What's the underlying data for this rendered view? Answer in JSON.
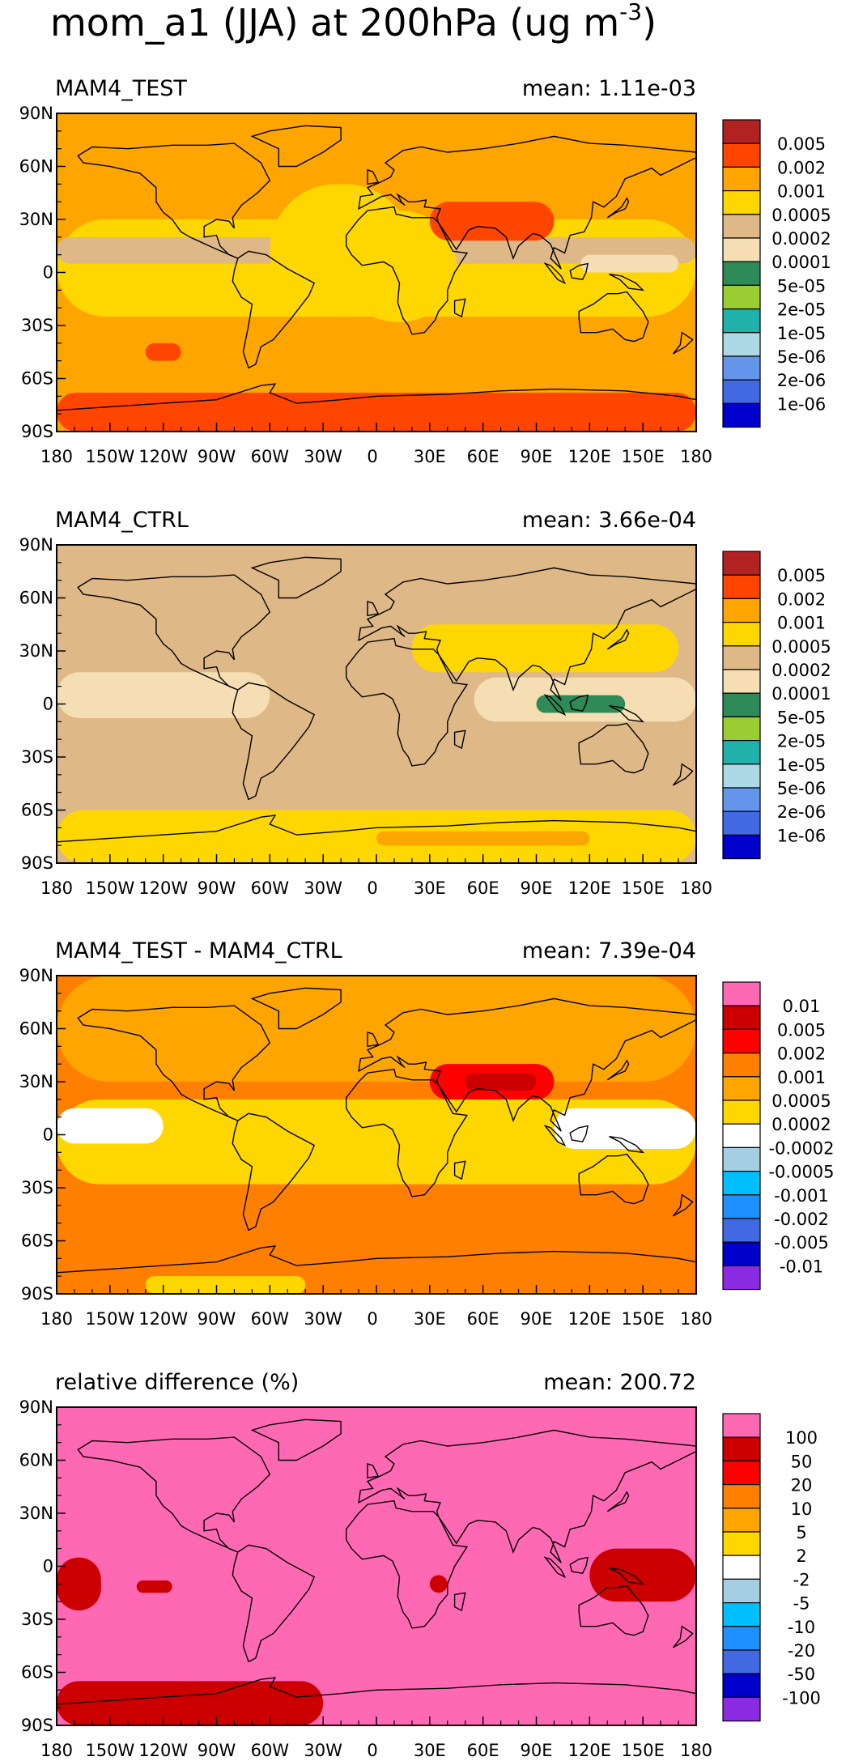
{
  "title": {
    "main": "mom_a1 (JJA) at 200hPa (ug m",
    "exponent": "-3",
    "close": ")"
  },
  "axes": {
    "x_ticks": [
      "180",
      "150W",
      "120W",
      "90W",
      "60W",
      "30W",
      "0",
      "30E",
      "60E",
      "90E",
      "120E",
      "150E",
      "180"
    ],
    "y_ticks": [
      "90N",
      "60N",
      "30N",
      "0",
      "30S",
      "60S",
      "90S"
    ]
  },
  "chart_data": [
    {
      "type": "heatmap",
      "subtitle": "MAM4_TEST",
      "mean_label": "mean:",
      "mean": "1.11e-03",
      "background": "#FFA500",
      "legend": {
        "labels": [
          "0.005",
          "0.002",
          "0.001",
          "0.0005",
          "0.0002",
          "0.0001",
          "5e-05",
          "2e-05",
          "1e-05",
          "5e-06",
          "2e-06",
          "1e-06"
        ],
        "colors": [
          "#B22222",
          "#FF4500",
          "#FFA500",
          "#FFD700",
          "#DEB887",
          "#F5DEB3",
          "#2E8B57",
          "#9ACD32",
          "#20B2AA",
          "#ADD8E6",
          "#6495ED",
          "#4169E1",
          "#0000CD"
        ]
      },
      "regions": [
        {
          "name": "tropical-belt",
          "color": "#FFD700",
          "lon": [
            -180,
            180
          ],
          "lat": [
            -25,
            30
          ]
        },
        {
          "name": "tan-band",
          "color": "#DEB887",
          "lon": [
            -180,
            180
          ],
          "lat": [
            5,
            20
          ]
        },
        {
          "name": "atlantic-yellow",
          "color": "#FFD700",
          "lon": [
            -60,
            20
          ],
          "lat": [
            -25,
            50
          ]
        },
        {
          "name": "africa-yellow",
          "color": "#FFD700",
          "lon": [
            -20,
            45
          ],
          "lat": [
            -28,
            35
          ]
        },
        {
          "name": "west-pacific-wheat",
          "color": "#F5DEB3",
          "lon": [
            115,
            170
          ],
          "lat": [
            0,
            10
          ]
        },
        {
          "name": "tibet-plume",
          "color": "#FF4500",
          "lon": [
            30,
            100
          ],
          "lat": [
            18,
            40
          ]
        },
        {
          "name": "south-pacific-patch",
          "color": "#FF4500",
          "lon": [
            -130,
            -110
          ],
          "lat": [
            -50,
            -40
          ]
        },
        {
          "name": "antarctic-band",
          "color": "#FF4500",
          "lon": [
            -180,
            180
          ],
          "lat": [
            -90,
            -68
          ]
        }
      ]
    },
    {
      "type": "heatmap",
      "subtitle": "MAM4_CTRL",
      "mean_label": "mean:",
      "mean": "3.66e-04",
      "background": "#DEB887",
      "legend": {
        "labels": [
          "0.005",
          "0.002",
          "0.001",
          "0.0005",
          "0.0002",
          "0.0001",
          "5e-05",
          "2e-05",
          "1e-05",
          "5e-06",
          "2e-06",
          "1e-06"
        ],
        "colors": [
          "#B22222",
          "#FF4500",
          "#FFA500",
          "#FFD700",
          "#DEB887",
          "#F5DEB3",
          "#2E8B57",
          "#9ACD32",
          "#20B2AA",
          "#ADD8E6",
          "#6495ED",
          "#4169E1",
          "#0000CD"
        ]
      },
      "regions": [
        {
          "name": "asia-yellow",
          "color": "#FFD700",
          "lon": [
            20,
            170
          ],
          "lat": [
            18,
            45
          ]
        },
        {
          "name": "wheat-west",
          "color": "#F5DEB3",
          "lon": [
            -180,
            -60
          ],
          "lat": [
            -8,
            18
          ]
        },
        {
          "name": "wheat-east",
          "color": "#F5DEB3",
          "lon": [
            55,
            180
          ],
          "lat": [
            -10,
            15
          ]
        },
        {
          "name": "maritime-green",
          "color": "#2E8B57",
          "lon": [
            90,
            140
          ],
          "lat": [
            -5,
            5
          ]
        },
        {
          "name": "south-yellow",
          "color": "#FFD700",
          "lon": [
            -180,
            180
          ],
          "lat": [
            -90,
            -60
          ]
        },
        {
          "name": "antarctic-orange",
          "color": "#FFA500",
          "lon": [
            0,
            120
          ],
          "lat": [
            -80,
            -72
          ]
        }
      ]
    },
    {
      "type": "heatmap",
      "subtitle": "MAM4_TEST - MAM4_CTRL",
      "mean_label": "mean:",
      "mean": "7.39e-04",
      "background": "#FF7F00",
      "legend": {
        "labels": [
          "0.01",
          "0.005",
          "0.002",
          "0.001",
          "0.0005",
          "0.0002",
          "-0.0002",
          "-0.0005",
          "-0.001",
          "-0.002",
          "-0.005",
          "-0.01"
        ],
        "colors": [
          "#FF69B4",
          "#CD0000",
          "#FF0000",
          "#FF7F00",
          "#FFA500",
          "#FFD700",
          "#FFFFFF",
          "#A6CEE3",
          "#00BFFF",
          "#1E90FF",
          "#4169E1",
          "#0000CD",
          "#8A2BE2"
        ]
      },
      "regions": [
        {
          "name": "north-orange",
          "color": "#FFA500",
          "lon": [
            -180,
            180
          ],
          "lat": [
            30,
            90
          ]
        },
        {
          "name": "tropical-gold",
          "color": "#FFD700",
          "lon": [
            -180,
            180
          ],
          "lat": [
            -28,
            20
          ]
        },
        {
          "name": "white-west",
          "color": "#FFFFFF",
          "lon": [
            -180,
            -120
          ],
          "lat": [
            -5,
            15
          ]
        },
        {
          "name": "white-east",
          "color": "#FFFFFF",
          "lon": [
            100,
            180
          ],
          "lat": [
            -8,
            15
          ]
        },
        {
          "name": "tibet-red",
          "color": "#FF0000",
          "lon": [
            30,
            100
          ],
          "lat": [
            20,
            40
          ]
        },
        {
          "name": "tibet-core",
          "color": "#CD0000",
          "lon": [
            50,
            90
          ],
          "lat": [
            25,
            35
          ]
        },
        {
          "name": "antarctic-gold",
          "color": "#FFD700",
          "lon": [
            -130,
            -40
          ],
          "lat": [
            -90,
            -80
          ]
        }
      ]
    },
    {
      "type": "heatmap",
      "subtitle": "relative difference (%)",
      "mean_label": "mean:",
      "mean": "200.72",
      "background": "#FF69B4",
      "legend": {
        "labels": [
          "100",
          "50",
          "20",
          "10",
          "5",
          "2",
          "-2",
          "-5",
          "-10",
          "-20",
          "-50",
          "-100"
        ],
        "colors": [
          "#FF69B4",
          "#CD0000",
          "#FF0000",
          "#FF7F00",
          "#FFA500",
          "#FFD700",
          "#FFFFFF",
          "#A6CEE3",
          "#00BFFF",
          "#1E90FF",
          "#4169E1",
          "#0000CD",
          "#8A2BE2"
        ]
      },
      "regions": [
        {
          "name": "east-pacific-patch",
          "color": "#CD0000",
          "lon": [
            -180,
            -155
          ],
          "lat": [
            -25,
            5
          ]
        },
        {
          "name": "pacific-small",
          "color": "#CD0000",
          "lon": [
            -135,
            -115
          ],
          "lat": [
            -15,
            -8
          ]
        },
        {
          "name": "west-pacific-patch",
          "color": "#CD0000",
          "lon": [
            120,
            180
          ],
          "lat": [
            -20,
            10
          ]
        },
        {
          "name": "antarctic-patch",
          "color": "#CD0000",
          "lon": [
            -180,
            -30
          ],
          "lat": [
            -90,
            -65
          ]
        },
        {
          "name": "africa-small",
          "color": "#CD0000",
          "lon": [
            30,
            40
          ],
          "lat": [
            -15,
            -5
          ]
        }
      ]
    }
  ]
}
